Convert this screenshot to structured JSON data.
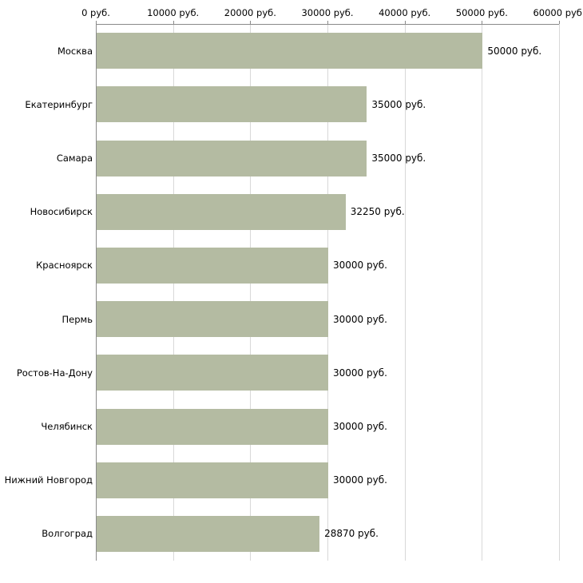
{
  "chart_data": {
    "type": "bar",
    "orientation": "horizontal",
    "title": "",
    "xlabel": "",
    "ylabel": "",
    "categories": [
      "Москва",
      "Екатеринбург",
      "Самара",
      "Новосибирск",
      "Красноярск",
      "Пермь",
      "Ростов-На-Дону",
      "Челябинск",
      "Нижний Новгород",
      "Волгоград"
    ],
    "values": [
      50000,
      35000,
      35000,
      32250,
      30000,
      30000,
      30000,
      30000,
      30000,
      28870
    ],
    "value_labels": [
      "50000 руб.",
      "35000 руб.",
      "35000 руб.",
      "32250 руб.",
      "30000 руб.",
      "30000 руб.",
      "30000 руб.",
      "30000 руб.",
      "30000 руб.",
      "28870 руб."
    ],
    "x_ticks": [
      0,
      10000,
      20000,
      30000,
      40000,
      50000,
      60000
    ],
    "x_tick_labels": [
      "0 руб.",
      "10000 руб.",
      "20000 руб.",
      "30000 руб.",
      "40000 руб.",
      "50000 руб.",
      "60000 руб."
    ],
    "xlim": [
      0,
      60000
    ],
    "grid": true,
    "legend": false,
    "bar_color": "#b4bba2",
    "grid_color": "#d8d8d8",
    "axis_color": "#8a8a8a",
    "text_color": "#000000"
  }
}
